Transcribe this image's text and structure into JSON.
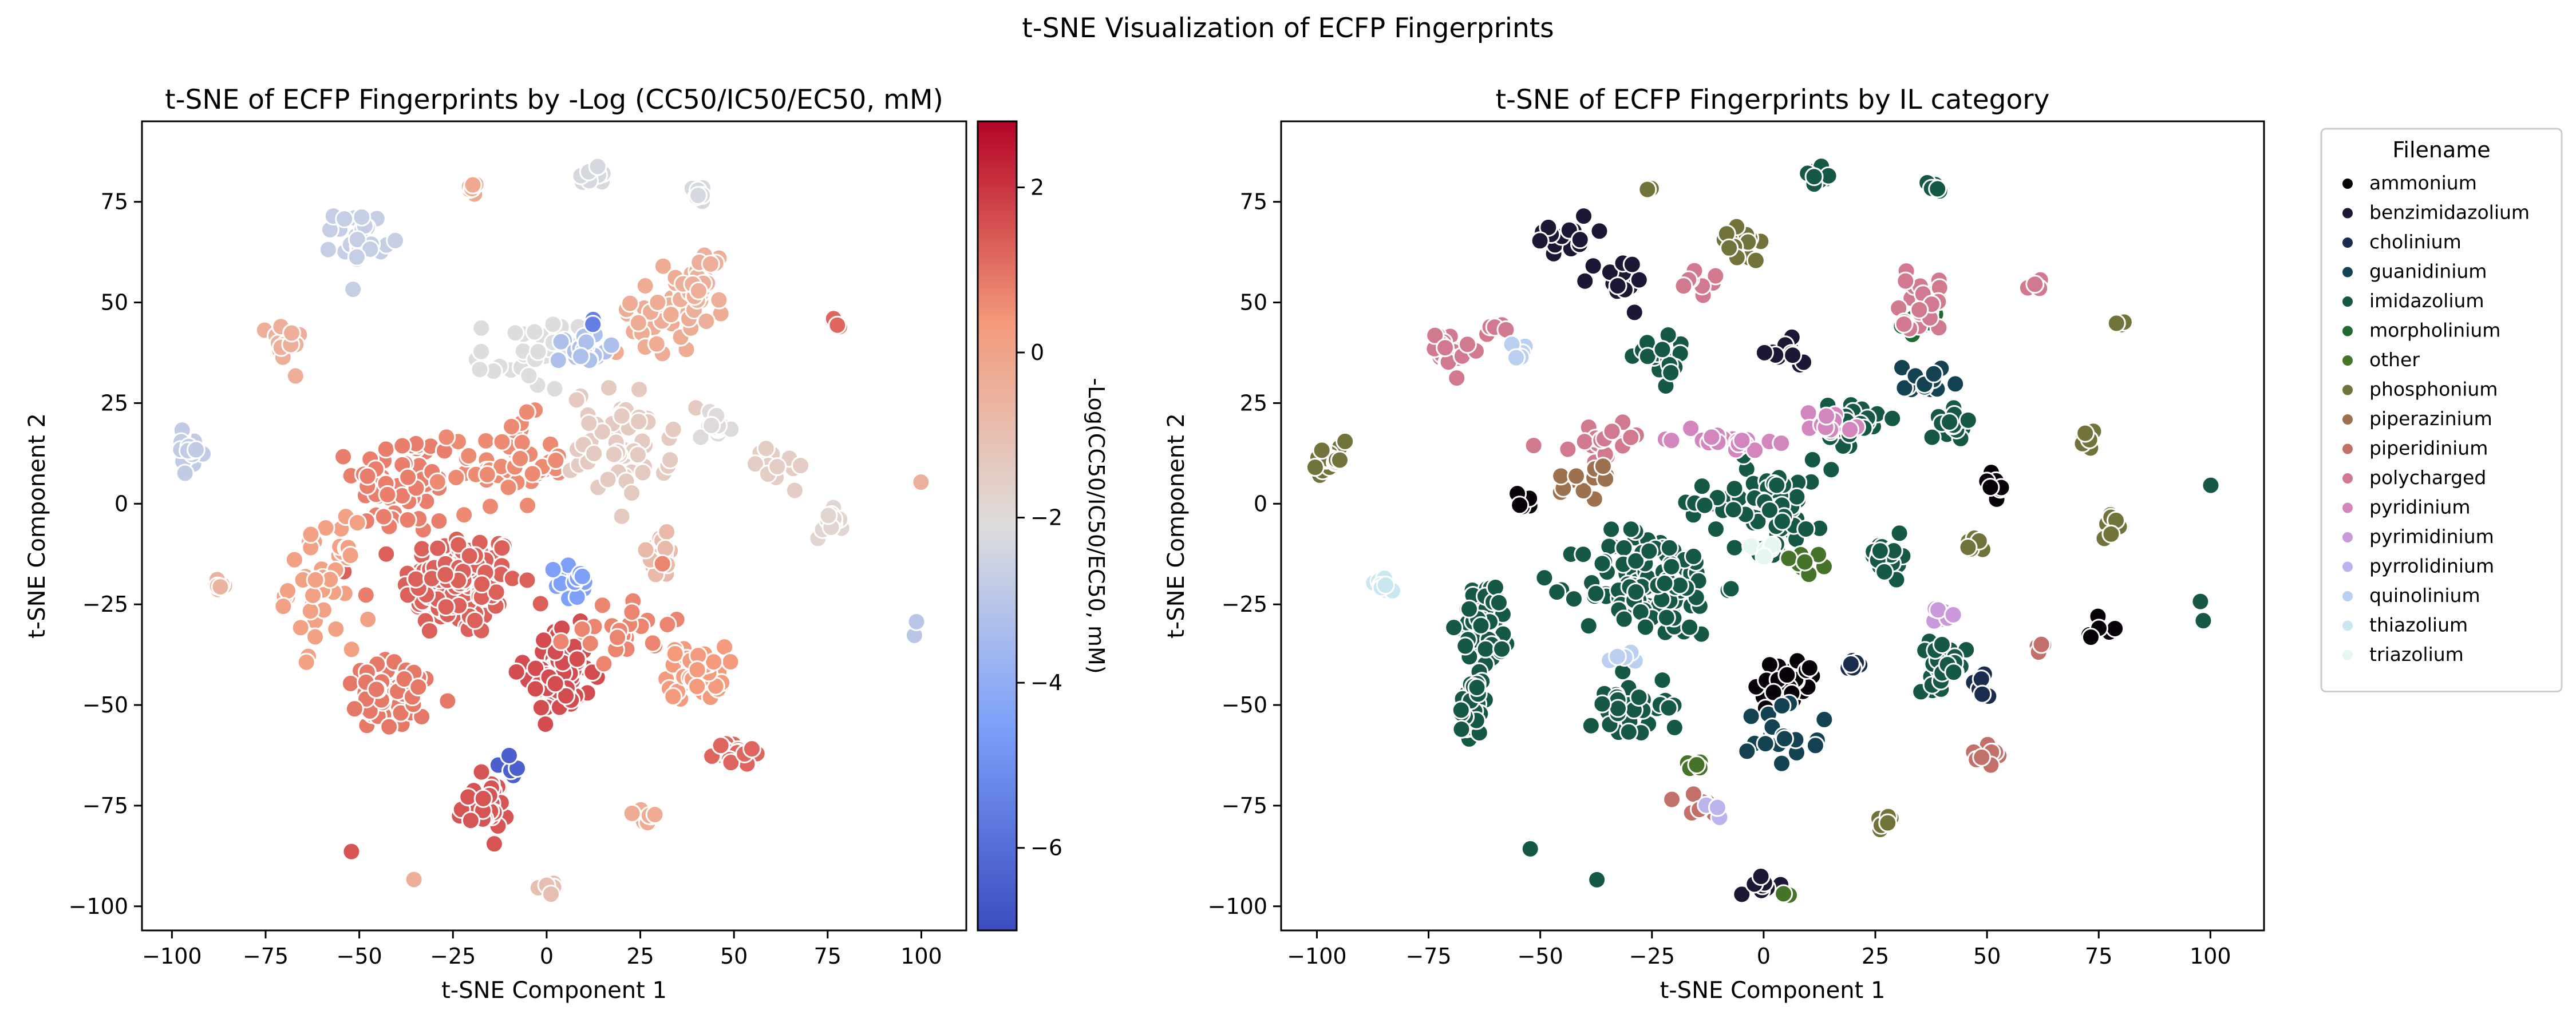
{
  "suptitle": "t-SNE Visualization of ECFP Fingerprints",
  "chart_data": [
    {
      "type": "scatter",
      "title": "t-SNE of ECFP Fingerprints by -Log (CC50/IC50/EC50, mM)",
      "xlabel": "t-SNE Component 1",
      "ylabel": "t-SNE Component 2",
      "xlim": [
        -108,
        112
      ],
      "ylim": [
        -106,
        95
      ],
      "xticks": [
        "−100",
        "−75",
        "−50",
        "−25",
        "0",
        "25",
        "50",
        "75",
        "100"
      ],
      "xtick_values": [
        -100,
        -75,
        -50,
        -25,
        0,
        25,
        50,
        75,
        100
      ],
      "yticks": [
        "−100",
        "−75",
        "−50",
        "−25",
        "0",
        "25",
        "50",
        "75"
      ],
      "ytick_values": [
        -100,
        -75,
        -50,
        -25,
        0,
        25,
        50,
        75
      ],
      "grid": false,
      "colorbar": {
        "label": "-Log(CC50/IC50/EC50, mM)",
        "colormap": "coolwarm",
        "range": [
          -7,
          2.8
        ],
        "ticks": [
          "−6",
          "−4",
          "−2",
          "0",
          "2"
        ],
        "tick_values": [
          -6,
          -4,
          -2,
          0,
          2
        ],
        "low_color": "#3b4cc0",
        "mid_color": "#dddddd",
        "high_color": "#b40426"
      },
      "clusters": [
        {
          "x": -23,
          "y": -20,
          "spread": [
            14,
            12
          ],
          "n": 140,
          "value": 1.3
        },
        {
          "x": -38,
          "y": 5,
          "spread": [
            12,
            12
          ],
          "n": 60,
          "value": 0.8
        },
        {
          "x": -10,
          "y": 10,
          "spread": [
            14,
            10
          ],
          "n": 50,
          "value": 0.6
        },
        {
          "x": 3,
          "y": -42,
          "spread": [
            8,
            10
          ],
          "n": 70,
          "value": 1.6
        },
        {
          "x": 40,
          "y": -42,
          "spread": [
            7,
            6
          ],
          "n": 50,
          "value": 0.3
        },
        {
          "x": -17,
          "y": -75,
          "spread": [
            6,
            6
          ],
          "n": 35,
          "value": 1.5
        },
        {
          "x": -60,
          "y": -20,
          "spread": [
            8,
            14
          ],
          "n": 45,
          "value": 0.1
        },
        {
          "x": -40,
          "y": -48,
          "spread": [
            14,
            8
          ],
          "n": 50,
          "value": 0.9
        },
        {
          "x": 20,
          "y": 15,
          "spread": [
            12,
            12
          ],
          "n": 60,
          "value": -1.4
        },
        {
          "x": 30,
          "y": 48,
          "spread": [
            10,
            10
          ],
          "n": 40,
          "value": -0.3
        },
        {
          "x": 42,
          "y": 55,
          "spread": [
            5,
            8
          ],
          "n": 25,
          "value": -0.4
        },
        {
          "x": -50,
          "y": 66,
          "spread": [
            6,
            6
          ],
          "n": 25,
          "value": -2.7
        },
        {
          "x": -5,
          "y": 37,
          "spread": [
            12,
            8
          ],
          "n": 30,
          "value": -2.1
        },
        {
          "x": -70,
          "y": 40,
          "spread": [
            4,
            5
          ],
          "n": 25,
          "value": -0.4
        },
        {
          "x": 30,
          "y": -13,
          "spread": [
            5,
            5
          ],
          "n": 25,
          "value": -0.8
        },
        {
          "x": 45,
          "y": 20,
          "spread": [
            4,
            3
          ],
          "n": 20,
          "value": -2.0
        },
        {
          "x": 13,
          "y": 82,
          "spread": [
            3,
            2
          ],
          "n": 15,
          "value": -2.3
        },
        {
          "x": -95,
          "y": 13,
          "spread": [
            4,
            4
          ],
          "n": 15,
          "value": -2.8
        },
        {
          "x": 75,
          "y": -5,
          "spread": [
            3,
            3
          ],
          "n": 15,
          "value": -1.8
        },
        {
          "x": 50,
          "y": -62,
          "spread": [
            5,
            3
          ],
          "n": 20,
          "value": 1.2
        },
        {
          "x": -20,
          "y": 78,
          "spread": [
            2,
            2
          ],
          "n": 6,
          "value": -0.2
        },
        {
          "x": 27,
          "y": -78,
          "spread": [
            3,
            2
          ],
          "n": 8,
          "value": -0.3
        },
        {
          "x": 0,
          "y": -95,
          "spread": [
            4,
            2
          ],
          "n": 8,
          "value": -1.0
        },
        {
          "x": -88,
          "y": -20,
          "spread": [
            3,
            2
          ],
          "n": 8,
          "value": -0.6
        },
        {
          "x": 40,
          "y": 78,
          "spread": [
            3,
            2
          ],
          "n": 8,
          "value": -2.3
        },
        {
          "x": 10,
          "y": 38,
          "spread": [
            6,
            4
          ],
          "n": 20,
          "value": -3.3
        },
        {
          "x": 62,
          "y": 10,
          "spread": [
            6,
            6
          ],
          "n": 15,
          "value": -1.5
        },
        {
          "x": 20,
          "y": -30,
          "spread": [
            12,
            8
          ],
          "n": 25,
          "value": 0.7
        },
        {
          "x": 8,
          "y": -20,
          "spread": [
            5,
            5
          ],
          "n": 15,
          "value": -4.5
        },
        {
          "x": -10,
          "y": -65,
          "spread": [
            3,
            3
          ],
          "n": 5,
          "value": -6.4
        },
        {
          "x": 12,
          "y": 45,
          "spread": [
            1,
            1
          ],
          "n": 2,
          "value": -5.5
        },
        {
          "x": 100,
          "y": 5,
          "spread": [
            1,
            1
          ],
          "n": 1,
          "value": -0.5
        },
        {
          "x": 98,
          "y": -28,
          "spread": [
            2,
            5
          ],
          "n": 2,
          "value": -3.0
        },
        {
          "x": 78,
          "y": 45,
          "spread": [
            2,
            2
          ],
          "n": 5,
          "value": 1.2
        },
        {
          "x": -36,
          "y": -93,
          "spread": [
            1,
            1
          ],
          "n": 1,
          "value": -0.4
        },
        {
          "x": -52,
          "y": -86,
          "spread": [
            1,
            1
          ],
          "n": 1,
          "value": 1.5
        }
      ]
    },
    {
      "type": "scatter",
      "title": "t-SNE of ECFP Fingerprints by IL category",
      "xlabel": "t-SNE Component 1",
      "ylabel": "t-SNE Component 2",
      "xlim": [
        -108,
        112
      ],
      "ylim": [
        -106,
        95
      ],
      "xticks": [
        "−100",
        "−75",
        "−50",
        "−25",
        "0",
        "25",
        "50",
        "75",
        "100"
      ],
      "xtick_values": [
        -100,
        -75,
        -50,
        -25,
        0,
        25,
        50,
        75,
        100
      ],
      "yticks": [
        "−100",
        "−75",
        "−50",
        "−25",
        "0",
        "25",
        "50",
        "75"
      ],
      "ytick_values": [
        -100,
        -75,
        -50,
        -25,
        0,
        25,
        50,
        75
      ],
      "grid": false,
      "legend": {
        "title": "Filename",
        "placement": "outside-right",
        "entries": [
          {
            "name": "ammonium",
            "color": "#080308"
          },
          {
            "name": "benzimidazolium",
            "color": "#1b1735"
          },
          {
            "name": "cholinium",
            "color": "#1a2d4e"
          },
          {
            "name": "guanidinium",
            "color": "#134352"
          },
          {
            "name": "imidazolium",
            "color": "#165846"
          },
          {
            "name": "morpholinium",
            "color": "#1f6a31"
          },
          {
            "name": "other",
            "color": "#457329"
          },
          {
            "name": "phosphonium",
            "color": "#72733a"
          },
          {
            "name": "piperazinium",
            "color": "#9e714e"
          },
          {
            "name": "piperidinium",
            "color": "#c2716a"
          },
          {
            "name": "polycharged",
            "color": "#d17a8f"
          },
          {
            "name": "pyridinium",
            "color": "#d386bd"
          },
          {
            "name": "pyrimidinium",
            "color": "#ca99db"
          },
          {
            "name": "pyrrolidinium",
            "color": "#bbb3ec"
          },
          {
            "name": "quinolinium",
            "color": "#bbcff0"
          },
          {
            "name": "thiazolium",
            "color": "#c8e7ef"
          },
          {
            "name": "triazolium",
            "color": "#e5f6f3"
          }
        ]
      },
      "clusters": [
        {
          "x": -25,
          "y": -20,
          "spread": [
            14,
            12
          ],
          "n": 120,
          "category": 4
        },
        {
          "x": -62,
          "y": -30,
          "spread": [
            5,
            10
          ],
          "n": 60,
          "category": 4
        },
        {
          "x": -65,
          "y": -50,
          "spread": [
            3,
            8
          ],
          "n": 30,
          "category": 4
        },
        {
          "x": 0,
          "y": 0,
          "spread": [
            14,
            10
          ],
          "n": 70,
          "category": 4
        },
        {
          "x": 20,
          "y": 20,
          "spread": [
            5,
            5
          ],
          "n": 30,
          "category": 4
        },
        {
          "x": 43,
          "y": 20,
          "spread": [
            3,
            3
          ],
          "n": 20,
          "category": 4
        },
        {
          "x": 28,
          "y": -13,
          "spread": [
            4,
            4
          ],
          "n": 25,
          "category": 4
        },
        {
          "x": 40,
          "y": -40,
          "spread": [
            5,
            5
          ],
          "n": 30,
          "category": 4
        },
        {
          "x": -30,
          "y": -50,
          "spread": [
            8,
            8
          ],
          "n": 40,
          "category": 4
        },
        {
          "x": -22,
          "y": 35,
          "spread": [
            6,
            5
          ],
          "n": 20,
          "category": 4
        },
        {
          "x": 12,
          "y": 82,
          "spread": [
            3,
            2
          ],
          "n": 15,
          "category": 4
        },
        {
          "x": 38,
          "y": 78,
          "spread": [
            2,
            2
          ],
          "n": 8,
          "category": 4
        },
        {
          "x": 5,
          "y": -45,
          "spread": [
            6,
            6
          ],
          "n": 40,
          "category": 0
        },
        {
          "x": -45,
          "y": 67,
          "spread": [
            6,
            5
          ],
          "n": 20,
          "category": 1
        },
        {
          "x": -32,
          "y": 55,
          "spread": [
            6,
            6
          ],
          "n": 15,
          "category": 1
        },
        {
          "x": 5,
          "y": 37,
          "spread": [
            4,
            3
          ],
          "n": 12,
          "category": 1
        },
        {
          "x": 0,
          "y": -95,
          "spread": [
            3,
            2
          ],
          "n": 8,
          "category": 1
        },
        {
          "x": 5,
          "y": -55,
          "spread": [
            8,
            8
          ],
          "n": 20,
          "category": 3
        },
        {
          "x": 35,
          "y": 30,
          "spread": [
            5,
            5
          ],
          "n": 15,
          "category": 3
        },
        {
          "x": 35,
          "y": 45,
          "spread": [
            5,
            4
          ],
          "n": 12,
          "category": 5
        },
        {
          "x": -97,
          "y": 10,
          "spread": [
            4,
            4
          ],
          "n": 18,
          "category": 7
        },
        {
          "x": -5,
          "y": 65,
          "spread": [
            4,
            5
          ],
          "n": 15,
          "category": 7
        },
        {
          "x": 28,
          "y": -78,
          "spread": [
            3,
            2
          ],
          "n": 8,
          "category": 7
        },
        {
          "x": 78,
          "y": -5,
          "spread": [
            2,
            3
          ],
          "n": 10,
          "category": 7
        },
        {
          "x": 47,
          "y": -10,
          "spread": [
            2,
            2
          ],
          "n": 8,
          "category": 7
        },
        {
          "x": 72,
          "y": 15,
          "spread": [
            2,
            3
          ],
          "n": 8,
          "category": 7
        },
        {
          "x": 80,
          "y": 45,
          "spread": [
            1,
            1
          ],
          "n": 3,
          "category": 7
        },
        {
          "x": -25,
          "y": 78,
          "spread": [
            1,
            1
          ],
          "n": 2,
          "category": 7
        },
        {
          "x": -70,
          "y": 38,
          "spread": [
            4,
            5
          ],
          "n": 25,
          "category": 10
        },
        {
          "x": 35,
          "y": 50,
          "spread": [
            6,
            6
          ],
          "n": 25,
          "category": 10
        },
        {
          "x": -15,
          "y": 55,
          "spread": [
            4,
            3
          ],
          "n": 8,
          "category": 10
        },
        {
          "x": -60,
          "y": 44,
          "spread": [
            2,
            2
          ],
          "n": 5,
          "category": 10
        },
        {
          "x": 60,
          "y": 55,
          "spread": [
            2,
            2
          ],
          "n": 4,
          "category": 10
        },
        {
          "x": -35,
          "y": 15,
          "spread": [
            10,
            4
          ],
          "n": 20,
          "category": 10
        },
        {
          "x": -10,
          "y": 16,
          "spread": [
            10,
            2
          ],
          "n": 25,
          "category": 11
        },
        {
          "x": 15,
          "y": 20,
          "spread": [
            6,
            3
          ],
          "n": 15,
          "category": 11
        },
        {
          "x": 40,
          "y": -28,
          "spread": [
            3,
            2
          ],
          "n": 8,
          "category": 12
        },
        {
          "x": -85,
          "y": -20,
          "spread": [
            2,
            2
          ],
          "n": 8,
          "category": 15
        },
        {
          "x": -55,
          "y": 38,
          "spread": [
            2,
            2
          ],
          "n": 5,
          "category": 14
        },
        {
          "x": -15,
          "y": -75,
          "spread": [
            5,
            3
          ],
          "n": 12,
          "category": 9
        },
        {
          "x": 50,
          "y": -63,
          "spread": [
            3,
            2
          ],
          "n": 8,
          "category": 9
        },
        {
          "x": 63,
          "y": -35,
          "spread": [
            2,
            2
          ],
          "n": 4,
          "category": 9
        },
        {
          "x": 48,
          "y": -45,
          "spread": [
            3,
            3
          ],
          "n": 8,
          "category": 2
        },
        {
          "x": 75,
          "y": -30,
          "spread": [
            3,
            3
          ],
          "n": 6,
          "category": 0
        },
        {
          "x": 52,
          "y": 5,
          "spread": [
            2,
            3
          ],
          "n": 8,
          "category": 0
        },
        {
          "x": -55,
          "y": 0,
          "spread": [
            3,
            3
          ],
          "n": 5,
          "category": 0
        },
        {
          "x": 20,
          "y": -40,
          "spread": [
            3,
            3
          ],
          "n": 6,
          "category": 2
        },
        {
          "x": 100,
          "y": 5,
          "spread": [
            1,
            1
          ],
          "n": 1,
          "category": 4
        },
        {
          "x": 98,
          "y": -28,
          "spread": [
            1,
            5
          ],
          "n": 2,
          "category": 4
        },
        {
          "x": -52,
          "y": -86,
          "spread": [
            1,
            1
          ],
          "n": 1,
          "category": 4
        },
        {
          "x": -37,
          "y": -93,
          "spread": [
            1,
            1
          ],
          "n": 1,
          "category": 4
        },
        {
          "x": 5,
          "y": -97,
          "spread": [
            1,
            1
          ],
          "n": 2,
          "category": 6
        },
        {
          "x": 10,
          "y": -15,
          "spread": [
            4,
            4
          ],
          "n": 8,
          "category": 6
        },
        {
          "x": -15,
          "y": -65,
          "spread": [
            3,
            3
          ],
          "n": 5,
          "category": 6
        },
        {
          "x": -40,
          "y": 5,
          "spread": [
            8,
            6
          ],
          "n": 12,
          "category": 8
        },
        {
          "x": -2,
          "y": -12,
          "spread": [
            4,
            4
          ],
          "n": 5,
          "category": 16
        },
        {
          "x": -12,
          "y": -75,
          "spread": [
            3,
            2
          ],
          "n": 4,
          "category": 13
        },
        {
          "x": -30,
          "y": -40,
          "spread": [
            4,
            4
          ],
          "n": 5,
          "category": 14
        }
      ]
    }
  ]
}
